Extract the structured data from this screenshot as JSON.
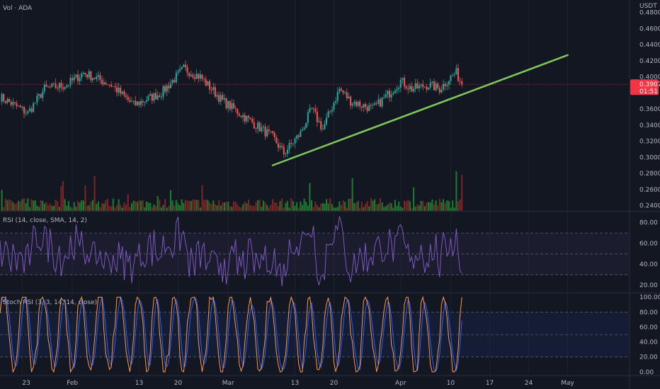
{
  "chart_data": {
    "type": "line",
    "title": "Vol · ADA",
    "quote_currency": "USDT",
    "x_ticks": [
      "23",
      "Feb",
      "13",
      "20",
      "Mar",
      "13",
      "20",
      "Apr",
      "10",
      "17",
      "24",
      "May"
    ],
    "price_pane": {
      "y_ticks": [
        "0.4800",
        "0.4600",
        "0.4400",
        "0.4200",
        "0.4000",
        "0.3600",
        "0.3400",
        "0.3200",
        "0.3000",
        "0.2800",
        "0.2600",
        "0.2400"
      ],
      "ylim": [
        0.2335,
        0.4885
      ],
      "last_price": "0.3907",
      "countdown": "01:51",
      "price_anchors": [
        [
          "2023-01-19",
          0.375
        ],
        [
          "2023-01-24",
          0.355
        ],
        [
          "2023-01-27",
          0.385
        ],
        [
          "2023-01-31",
          0.39
        ],
        [
          "2023-02-03",
          0.405
        ],
        [
          "2023-02-08",
          0.39
        ],
        [
          "2023-02-12",
          0.365
        ],
        [
          "2023-02-17",
          0.38
        ],
        [
          "2023-02-21",
          0.41
        ],
        [
          "2023-02-24",
          0.4
        ],
        [
          "2023-02-28",
          0.37
        ],
        [
          "2023-03-03",
          0.355
        ],
        [
          "2023-03-06",
          0.34
        ],
        [
          "2023-03-09",
          0.325
        ],
        [
          "2023-03-11",
          0.305
        ],
        [
          "2023-03-14",
          0.33
        ],
        [
          "2023-03-16",
          0.36
        ],
        [
          "2023-03-18",
          0.335
        ],
        [
          "2023-03-21",
          0.385
        ],
        [
          "2023-03-23",
          0.37
        ],
        [
          "2023-03-27",
          0.36
        ],
        [
          "2023-03-30",
          0.38
        ],
        [
          "2023-04-01",
          0.395
        ],
        [
          "2023-04-03",
          0.385
        ],
        [
          "2023-04-06",
          0.39
        ],
        [
          "2023-04-08",
          0.385
        ],
        [
          "2023-04-10",
          0.4
        ],
        [
          "2023-04-11",
          0.405
        ],
        [
          "2023-04-12",
          0.3907
        ]
      ],
      "trendline": {
        "from": [
          "2023-03-09",
          0.29
        ],
        "to": [
          "2023-05-01",
          0.427
        ],
        "color": "#7ec95a"
      }
    },
    "rsi_pane": {
      "label": "RSI (14, close, SMA, 14, 2)",
      "y_ticks": [
        "80.00",
        "60.00",
        "40.00",
        "20.00"
      ],
      "ylim": [
        14,
        90
      ],
      "bands": [
        70,
        50,
        30
      ],
      "color": "#7e57c2"
    },
    "stoch_pane": {
      "label": "Stoch RSI (3, 3, 14, 14, close)",
      "y_ticks": [
        "100.00",
        "80.00",
        "60.00",
        "40.00",
        "20.00",
        "0.00"
      ],
      "ylim": [
        -4,
        104
      ],
      "bands": [
        80,
        50,
        20
      ],
      "k_color": "#ff9850",
      "d_color": "#2962ff"
    },
    "colors": {
      "background": "#131722",
      "candle_up": "#26a69a",
      "candle_down": "#ef5350",
      "volume_up": "#1f7a2e",
      "volume_down": "#7a2626",
      "price_tag_bg": "#f23645"
    }
  }
}
